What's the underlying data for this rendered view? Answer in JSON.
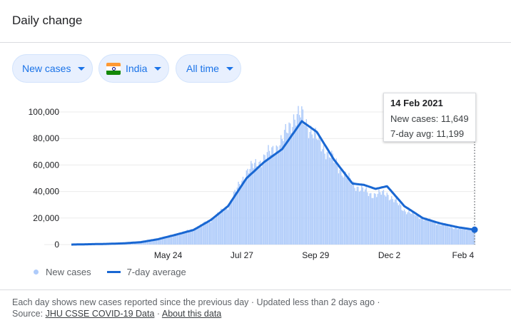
{
  "header": {
    "title": "Daily change"
  },
  "filters": {
    "metric": "New cases",
    "region": "India",
    "range": "All time"
  },
  "tooltip": {
    "date": "14 Feb 2021",
    "new_cases_label": "New cases:",
    "new_cases_value": "11,649",
    "avg_label": "7-day avg:",
    "avg_value": "11,199"
  },
  "legend": {
    "bars": "New cases",
    "line": "7-day average"
  },
  "footer": {
    "note": "Each day shows new cases reported since the previous day · Updated less than 2 days ago ·",
    "source_label": "Source:",
    "source_link": "JHU CSSE COVID-19 Data",
    "separator": "·",
    "about_link": "About this data"
  },
  "colors": {
    "bars": "#aecbfa",
    "line": "#1967d2",
    "accent": "#1a73e8"
  },
  "chart_data": {
    "type": "bar",
    "ylim": [
      0,
      100000
    ],
    "yticks": [
      "100,000",
      "80,000",
      "60,000",
      "40,000",
      "20,000",
      "0"
    ],
    "ytick_values": [
      100000,
      80000,
      60000,
      40000,
      20000,
      0
    ],
    "xticks": [
      "May 24",
      "Jul 27",
      "Sep 29",
      "Dec 2",
      "Feb 4"
    ],
    "x_start": "2020-03-01",
    "x_end": "2021-02-14",
    "grid": "horizontal",
    "series": [
      {
        "name": "New cases",
        "type": "bar",
        "points": [
          [
            "2020-03-01",
            0
          ],
          [
            "2020-03-15",
            100
          ],
          [
            "2020-03-31",
            400
          ],
          [
            "2020-04-15",
            1000
          ],
          [
            "2020-04-30",
            1800
          ],
          [
            "2020-05-15",
            3900
          ],
          [
            "2020-05-31",
            8000
          ],
          [
            "2020-06-15",
            11500
          ],
          [
            "2020-06-30",
            18500
          ],
          [
            "2020-07-15",
            29000
          ],
          [
            "2020-07-31",
            55000
          ],
          [
            "2020-08-15",
            65000
          ],
          [
            "2020-08-31",
            78000
          ],
          [
            "2020-09-10",
            96000
          ],
          [
            "2020-09-17",
            97000
          ],
          [
            "2020-09-30",
            80000
          ],
          [
            "2020-10-15",
            63000
          ],
          [
            "2020-10-31",
            46000
          ],
          [
            "2020-11-15",
            38000
          ],
          [
            "2020-11-30",
            38500
          ],
          [
            "2020-12-15",
            26000
          ],
          [
            "2020-12-31",
            20000
          ],
          [
            "2021-01-15",
            15500
          ],
          [
            "2021-01-31",
            12000
          ],
          [
            "2021-02-14",
            11649
          ]
        ]
      },
      {
        "name": "7-day average",
        "type": "line",
        "points": [
          [
            "2020-03-01",
            0
          ],
          [
            "2020-03-31",
            500
          ],
          [
            "2020-04-15",
            900
          ],
          [
            "2020-04-30",
            1800
          ],
          [
            "2020-05-15",
            4000
          ],
          [
            "2020-05-31",
            7500
          ],
          [
            "2020-06-15",
            11000
          ],
          [
            "2020-06-30",
            18500
          ],
          [
            "2020-07-15",
            29000
          ],
          [
            "2020-07-31",
            50000
          ],
          [
            "2020-08-15",
            62000
          ],
          [
            "2020-08-31",
            72000
          ],
          [
            "2020-09-17",
            93000
          ],
          [
            "2020-09-30",
            85000
          ],
          [
            "2020-10-15",
            64000
          ],
          [
            "2020-10-31",
            46000
          ],
          [
            "2020-11-10",
            45000
          ],
          [
            "2020-11-20",
            42000
          ],
          [
            "2020-11-30",
            44000
          ],
          [
            "2020-12-15",
            29000
          ],
          [
            "2020-12-31",
            20000
          ],
          [
            "2021-01-15",
            16000
          ],
          [
            "2021-01-31",
            13000
          ],
          [
            "2021-02-14",
            11199
          ]
        ]
      }
    ]
  }
}
